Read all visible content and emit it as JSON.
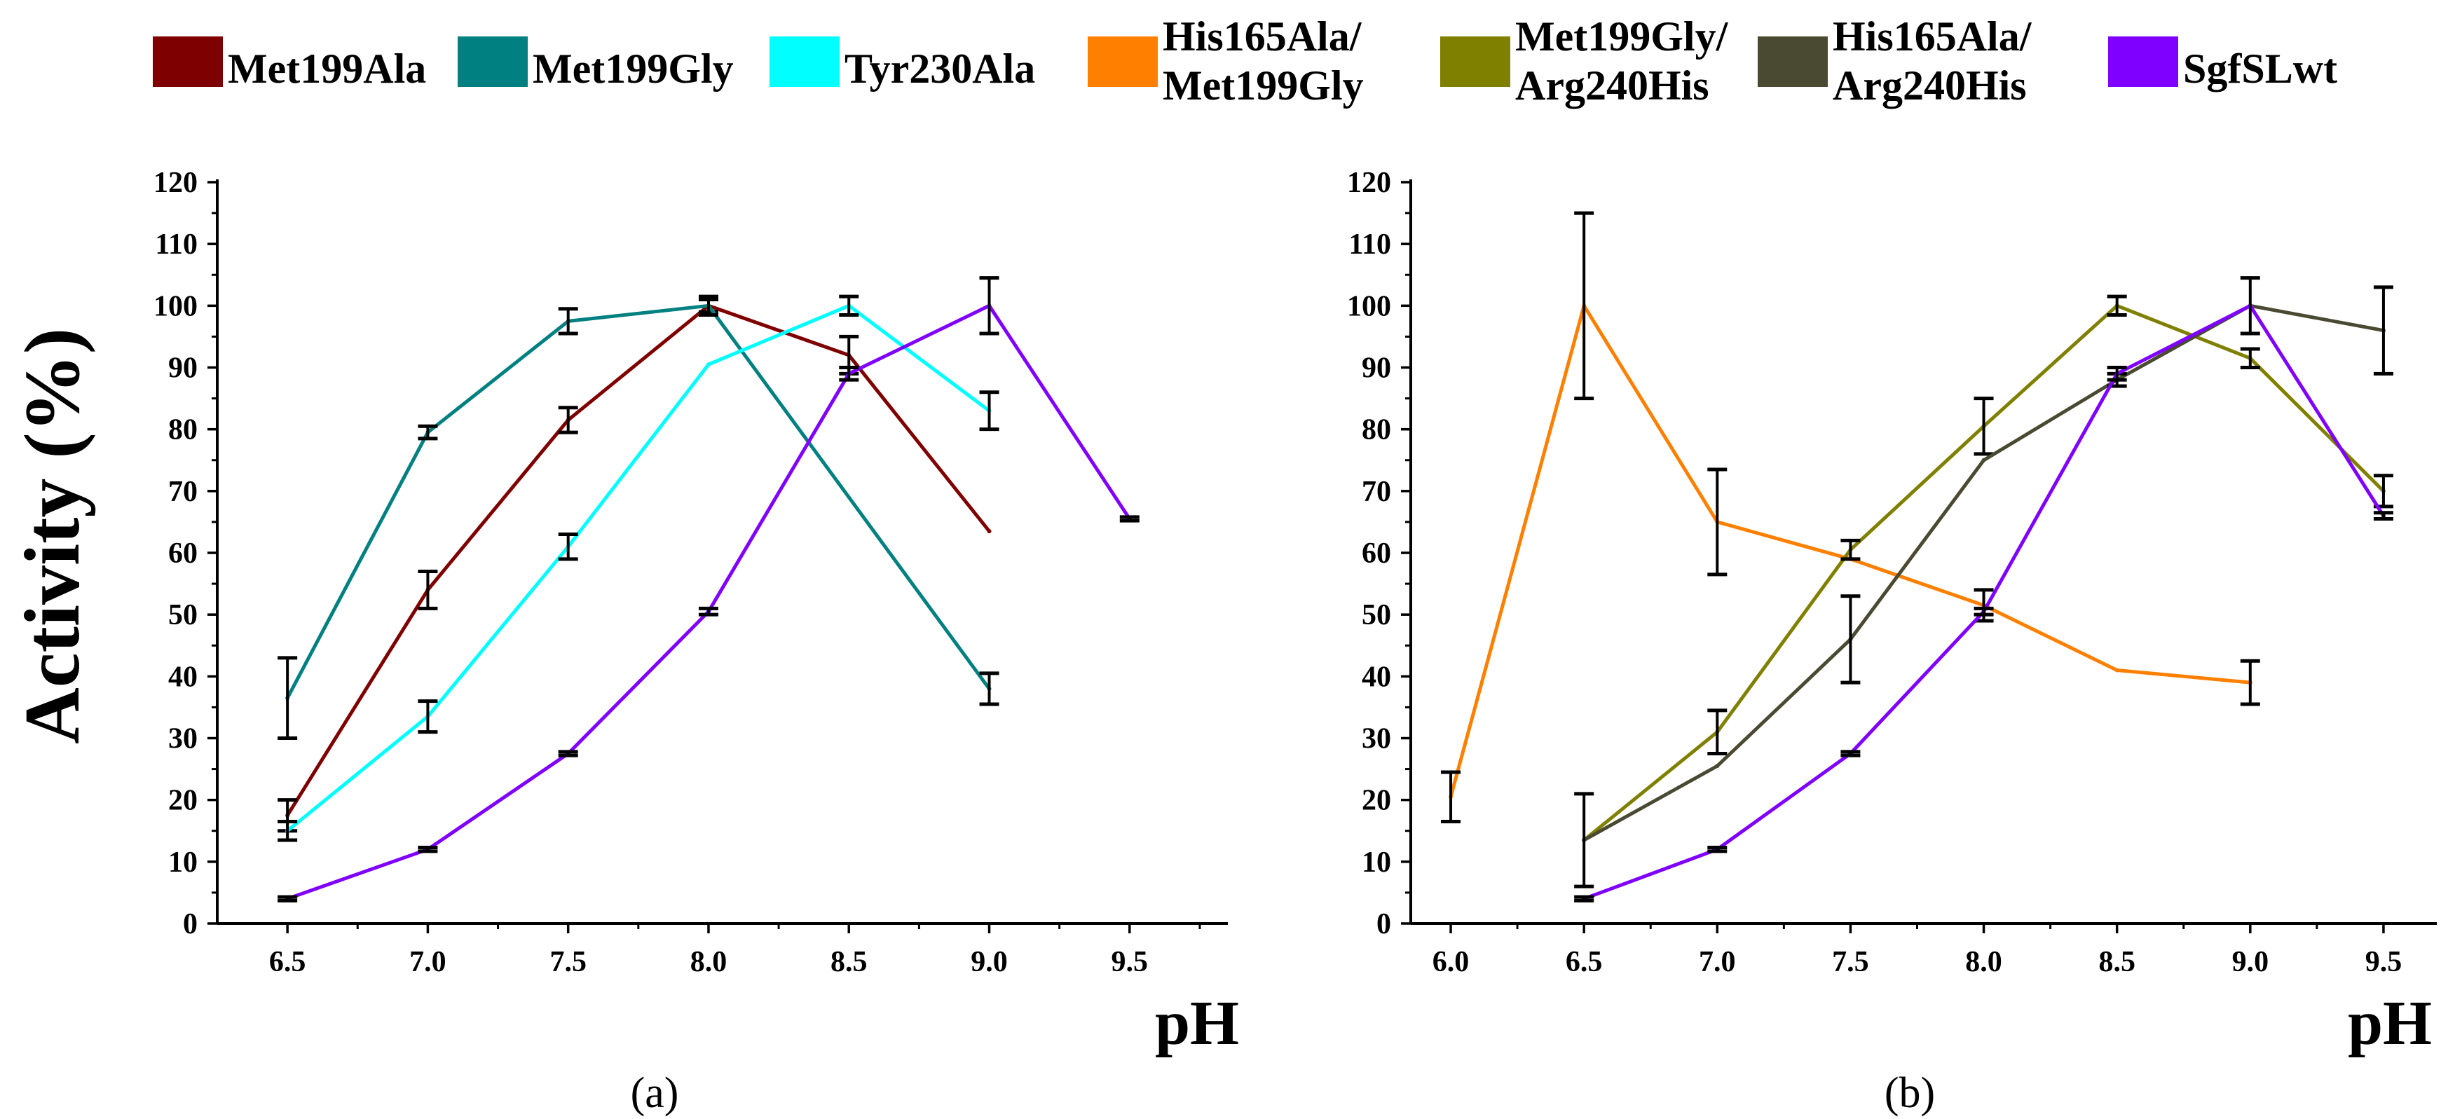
{
  "legend": {
    "items": [
      {
        "label_lines": [
          "Met199Ala"
        ],
        "color": "#7f0000"
      },
      {
        "label_lines": [
          "Met199Gly"
        ],
        "color": "#008080"
      },
      {
        "label_lines": [
          "Tyr230Ala"
        ],
        "color": "#00ffff"
      },
      {
        "label_lines": [
          "His165Ala/",
          "Met199Gly"
        ],
        "color": "#ff8000"
      },
      {
        "label_lines": [
          "Met199Gly/",
          "Arg240His"
        ],
        "color": "#808000"
      },
      {
        "label_lines": [
          "His165Ala/",
          "Arg240His"
        ],
        "color": "#4a4a32"
      },
      {
        "label_lines": [
          "SgfSLwt"
        ],
        "color": "#8000ff"
      }
    ]
  },
  "shared": {
    "ylabel": "Activity (%)"
  },
  "chart_data": [
    {
      "type": "line",
      "caption": "(a)",
      "xlabel": "pH",
      "ylabel": "Activity (%)",
      "xlim": [
        6.25,
        9.85
      ],
      "ylim": [
        0,
        120
      ],
      "xticks": [
        "6.5",
        "7.0",
        "7.5",
        "8.0",
        "8.5",
        "9.0",
        "9.5"
      ],
      "yticks": [
        "0",
        "10",
        "20",
        "30",
        "40",
        "50",
        "60",
        "70",
        "80",
        "90",
        "100",
        "110",
        "120"
      ],
      "series": [
        {
          "name": "Met199Ala",
          "color": "#7f0000",
          "x": [
            6.5,
            7.0,
            7.5,
            8.0,
            8.5,
            9.0
          ],
          "y": [
            17.5,
            54,
            81.5,
            100,
            92,
            63.5
          ],
          "err": [
            2.5,
            3,
            2,
            1,
            3,
            0
          ]
        },
        {
          "name": "Met199Gly",
          "color": "#008080",
          "x": [
            6.5,
            7.0,
            7.5,
            8.0,
            9.0
          ],
          "y": [
            36.5,
            79.5,
            97.5,
            100,
            38
          ],
          "err": [
            6.5,
            1,
            2,
            1.5,
            2.5
          ]
        },
        {
          "name": "Tyr230Ala",
          "color": "#00ffff",
          "x": [
            6.5,
            7.0,
            7.5,
            8.0,
            8.5,
            9.0
          ],
          "y": [
            15,
            33.5,
            61,
            90.5,
            100,
            83
          ],
          "err": [
            1.5,
            2.5,
            2,
            0,
            1.5,
            3
          ]
        },
        {
          "name": "SgfSLwt",
          "color": "#8000ff",
          "x": [
            6.5,
            7.0,
            7.5,
            8.0,
            8.5,
            9.0,
            9.5
          ],
          "y": [
            4,
            12,
            27.5,
            50.5,
            89,
            100,
            65.5
          ],
          "err": [
            0.3,
            0.3,
            0.3,
            0.5,
            1,
            4.5,
            0.3
          ]
        }
      ]
    },
    {
      "type": "line",
      "caption": "(b)",
      "xlabel": "pH",
      "xlim": [
        5.85,
        9.7
      ],
      "ylim": [
        0,
        120
      ],
      "xticks": [
        "6.0",
        "6.5",
        "7.0",
        "7.5",
        "8.0",
        "8.5",
        "9.0",
        "9.5"
      ],
      "yticks": [
        "0",
        "10",
        "20",
        "30",
        "40",
        "50",
        "60",
        "70",
        "80",
        "90",
        "100",
        "110",
        "120"
      ],
      "series": [
        {
          "name": "His165Ala/Met199Gly",
          "color": "#ff8000",
          "x": [
            6.0,
            6.5,
            7.0,
            7.5,
            8.0,
            8.5,
            9.0
          ],
          "y": [
            20.5,
            100,
            65,
            59,
            51.5,
            41,
            39
          ],
          "err": [
            4,
            15,
            8.5,
            0,
            2.5,
            0,
            3.5
          ]
        },
        {
          "name": "Met199Gly/Arg240His",
          "color": "#808000",
          "x": [
            6.5,
            7.0,
            7.5,
            8.0,
            8.5,
            9.0,
            9.5
          ],
          "y": [
            13.5,
            31,
            60.5,
            80.5,
            100,
            91.5,
            70
          ],
          "err": [
            0,
            3.5,
            1.5,
            4.5,
            1.5,
            1.5,
            2.5
          ]
        },
        {
          "name": "His165Ala/Arg240His",
          "color": "#4a4a32",
          "x": [
            6.5,
            7.0,
            7.5,
            8.0,
            8.5,
            9.0,
            9.5
          ],
          "y": [
            13.5,
            25.5,
            46,
            75,
            88,
            100,
            96
          ],
          "err": [
            7.5,
            0,
            7,
            0,
            1,
            0,
            7
          ]
        },
        {
          "name": "SgfSLwt",
          "color": "#8000ff",
          "x": [
            6.5,
            7.0,
            7.5,
            8.0,
            8.5,
            9.0,
            9.5
          ],
          "y": [
            4,
            12,
            27.5,
            50.5,
            89,
            100,
            66
          ],
          "err": [
            0.3,
            0.3,
            0.3,
            0.5,
            1,
            4.5,
            0.5
          ]
        }
      ]
    }
  ]
}
